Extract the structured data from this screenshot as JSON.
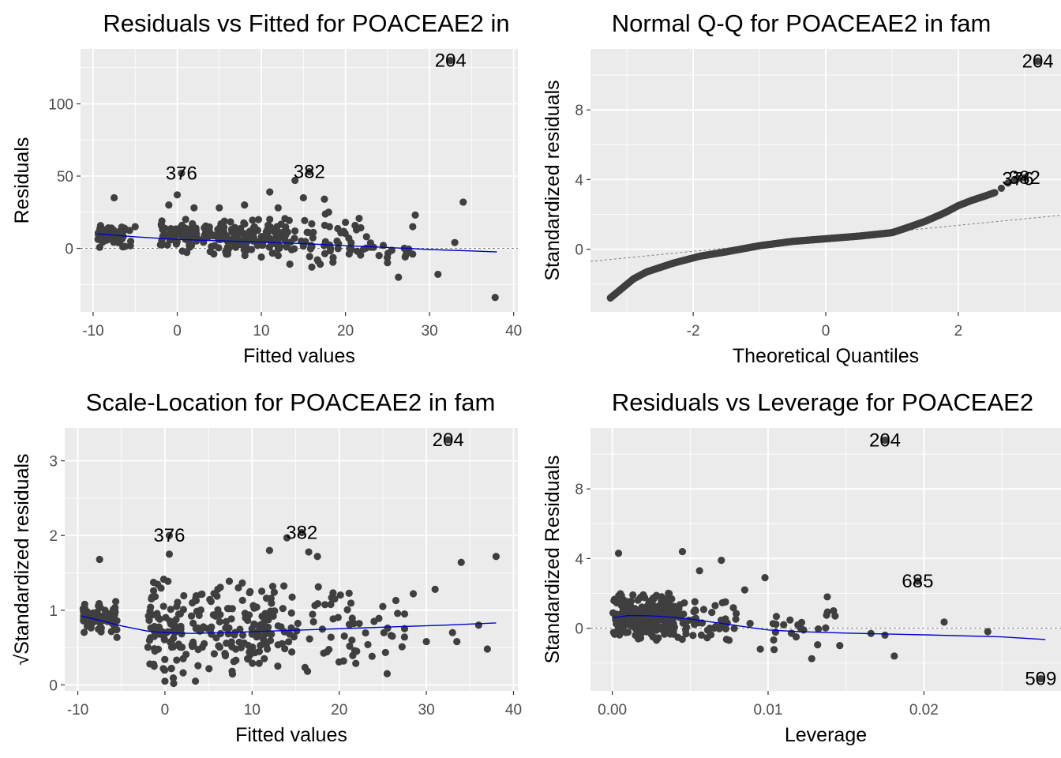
{
  "colors": {
    "panel_background": "#ebebeb",
    "grid": "#ffffff",
    "points": "#3f3f3f",
    "smooth_line": "#0000cc",
    "reference_line": "#7f7f7f",
    "tick_label": "#4d4d4d",
    "text": "#000000"
  },
  "chart_data": [
    {
      "id": "residuals-vs-fitted",
      "type": "scatter",
      "title": "Residuals vs Fitted for POACEAE2 in",
      "xlabel": "Fitted values",
      "ylabel": "Residuals",
      "xlim": [
        -11.5,
        40.5
      ],
      "ylim": [
        -44,
        138
      ],
      "xticks": [
        -10,
        0,
        10,
        20,
        30,
        40
      ],
      "xtick_labels": [
        "-10",
        "0",
        "10",
        "20",
        "30",
        "40"
      ],
      "yticks": [
        0,
        50,
        100
      ],
      "ytick_labels": [
        "0",
        "50",
        "100"
      ],
      "grid": true,
      "reference_line": {
        "type": "h",
        "value": 0
      },
      "smooth": {
        "x": [
          -9.5,
          -5,
          0,
          5,
          10,
          15,
          20,
          25,
          30,
          35,
          38
        ],
        "y": [
          10,
          8,
          6.2,
          5.2,
          4.3,
          3.3,
          1.8,
          0.6,
          -0.8,
          -1.8,
          -2.5
        ]
      },
      "cluster_seed": 11,
      "clusters": [
        {
          "n": 70,
          "x": [
            -9.5,
            -5.5
          ],
          "y": [
            -1,
            16
          ]
        },
        {
          "n": 70,
          "x": [
            -2,
            2.5
          ],
          "y": [
            -2,
            22
          ]
        },
        {
          "n": 140,
          "x": [
            3,
            13
          ],
          "y": [
            -6,
            24
          ]
        },
        {
          "n": 50,
          "x": [
            13,
            22
          ],
          "y": [
            -12,
            28
          ]
        },
        {
          "n": 12,
          "x": [
            22,
            28
          ],
          "y": [
            -8,
            8
          ]
        }
      ],
      "points": [
        [
          32.5,
          130
        ],
        [
          0.5,
          52
        ],
        [
          15.7,
          53
        ],
        [
          -7.5,
          35
        ],
        [
          0,
          37
        ],
        [
          11,
          39
        ],
        [
          14,
          47
        ],
        [
          15,
          35
        ],
        [
          17.5,
          34
        ],
        [
          28.3,
          23
        ],
        [
          34,
          32
        ],
        [
          33,
          4
        ],
        [
          31,
          -18
        ],
        [
          37.8,
          -34
        ],
        [
          26.3,
          -20
        ],
        [
          25,
          -10
        ],
        [
          24,
          -5
        ],
        [
          22.5,
          8
        ],
        [
          21.5,
          14
        ],
        [
          20,
          18
        ],
        [
          18,
          25
        ],
        [
          12,
          28
        ],
        [
          8,
          30
        ],
        [
          5,
          28
        ],
        [
          -1,
          30
        ],
        [
          -5,
          15
        ],
        [
          19,
          5
        ],
        [
          17,
          -11
        ],
        [
          16,
          -13
        ],
        [
          14,
          12
        ],
        [
          11,
          20
        ],
        [
          2,
          28
        ],
        [
          1,
          20
        ],
        [
          6,
          -4
        ],
        [
          10,
          -6
        ],
        [
          12,
          -5
        ],
        [
          28,
          15
        ],
        [
          27,
          0
        ],
        [
          24.5,
          2
        ],
        [
          20.5,
          0
        ]
      ],
      "point_labels": [
        {
          "text": "204",
          "x": 32.5,
          "y": 130
        },
        {
          "text": "376",
          "x": 0.5,
          "y": 52
        },
        {
          "text": "382",
          "x": 15.7,
          "y": 53
        }
      ]
    },
    {
      "id": "normal-qq",
      "type": "scatter",
      "title": "Normal Q-Q for POACEAE2 in fam",
      "xlabel": "Theoretical Quantiles",
      "ylabel": "Standardized residuals",
      "xlim": [
        -3.55,
        3.55
      ],
      "ylim": [
        -3.6,
        11.5
      ],
      "xticks": [
        -2,
        0,
        2
      ],
      "xtick_labels": [
        "-2",
        "0",
        "2"
      ],
      "yticks": [
        0,
        4,
        8
      ],
      "ytick_labels": [
        "0",
        "4",
        "8"
      ],
      "grid": true,
      "reference_line": {
        "type": "ab",
        "x": [
          -3.55,
          3.55
        ],
        "y": [
          -0.7,
          1.95
        ]
      },
      "qq_curve": {
        "n": 480,
        "x_range": [
          -3.25,
          2.55
        ],
        "qx": [
          -3.25,
          -2.9,
          -2.7,
          -2.3,
          -1.9,
          -1.5,
          -1.0,
          -0.5,
          0,
          0.5,
          1.0,
          1.2,
          1.5,
          1.8,
          2.0,
          2.2,
          2.4,
          2.55
        ],
        "qy": [
          -2.8,
          -1.7,
          -1.3,
          -0.8,
          -0.4,
          -0.15,
          0.2,
          0.45,
          0.6,
          0.75,
          0.95,
          1.2,
          1.6,
          2.1,
          2.5,
          2.8,
          3.05,
          3.25
        ]
      },
      "points": [
        [
          3.2,
          10.8
        ],
        [
          2.85,
          4.0
        ],
        [
          2.9,
          4.05
        ],
        [
          3.0,
          4.1
        ],
        [
          2.75,
          3.8
        ],
        [
          2.65,
          3.5
        ]
      ],
      "point_labels": [
        {
          "text": "204",
          "x": 3.2,
          "y": 10.8
        },
        {
          "text": "376",
          "x": 2.9,
          "y": 4.05
        },
        {
          "text": "382",
          "x": 3.0,
          "y": 4.1
        }
      ]
    },
    {
      "id": "scale-location",
      "type": "scatter",
      "title": "Scale-Location for POACEAE2 in fam",
      "xlabel": "Fitted values",
      "ylabel": "√Standardized residuals",
      "xlim": [
        -11.5,
        40.5
      ],
      "ylim": [
        -0.08,
        3.44
      ],
      "xticks": [
        -10,
        0,
        10,
        20,
        30,
        40
      ],
      "xtick_labels": [
        "-10",
        "0",
        "10",
        "20",
        "30",
        "40"
      ],
      "yticks": [
        0,
        1,
        2,
        3
      ],
      "ytick_labels": [
        "0",
        "1",
        "2",
        "3"
      ],
      "grid": true,
      "smooth": {
        "x": [
          -9.5,
          -7,
          -5,
          -2,
          0,
          3,
          7,
          12,
          17,
          22,
          27,
          32,
          38
        ],
        "y": [
          0.92,
          0.85,
          0.79,
          0.72,
          0.7,
          0.69,
          0.7,
          0.72,
          0.74,
          0.76,
          0.78,
          0.8,
          0.83
        ]
      },
      "cluster_seed": 23,
      "clusters": [
        {
          "n": 70,
          "x": [
            -9.5,
            -5.5
          ],
          "y": [
            0.68,
            1.2
          ]
        },
        {
          "n": 80,
          "x": [
            -2,
            2.5
          ],
          "y": [
            0.1,
            1.6
          ]
        },
        {
          "n": 140,
          "x": [
            3,
            13
          ],
          "y": [
            0.1,
            1.5
          ]
        },
        {
          "n": 50,
          "x": [
            13,
            22
          ],
          "y": [
            0.15,
            1.6
          ]
        },
        {
          "n": 14,
          "x": [
            22,
            28
          ],
          "y": [
            0.15,
            0.9
          ]
        }
      ],
      "points": [
        [
          32.5,
          3.28
        ],
        [
          0.5,
          2.0
        ],
        [
          15.7,
          2.04
        ],
        [
          0.5,
          1.75
        ],
        [
          14,
          1.97
        ],
        [
          12,
          1.8
        ],
        [
          16.5,
          1.78
        ],
        [
          17.5,
          1.72
        ],
        [
          -7.5,
          1.68
        ],
        [
          38,
          1.72
        ],
        [
          34,
          1.64
        ],
        [
          31,
          1.28
        ],
        [
          28.5,
          1.22
        ],
        [
          26.5,
          1.13
        ],
        [
          27.5,
          0.95
        ],
        [
          25,
          1.05
        ],
        [
          24,
          0.85
        ],
        [
          37,
          0.48
        ],
        [
          36,
          0.8
        ],
        [
          30,
          0.58
        ],
        [
          33,
          0.7
        ],
        [
          33.5,
          0.58
        ],
        [
          25.5,
          0.15
        ],
        [
          20.5,
          0.32
        ],
        [
          22,
          0.45
        ],
        [
          0,
          0.05
        ],
        [
          3.5,
          0.05
        ],
        [
          1,
          0.02
        ]
      ],
      "point_labels": [
        {
          "text": "204",
          "x": 32.5,
          "y": 3.28
        },
        {
          "text": "376",
          "x": 0.5,
          "y": 2.0
        },
        {
          "text": "382",
          "x": 15.7,
          "y": 2.04
        }
      ]
    },
    {
      "id": "residuals-vs-leverage",
      "type": "scatter",
      "title": "Residuals vs Leverage for POACEAE2",
      "xlabel": "Leverage",
      "ylabel": "Standardized Residuals",
      "xlim": [
        -0.0014,
        0.0288
      ],
      "ylim": [
        -3.6,
        11.5
      ],
      "xticks": [
        0.0,
        0.01,
        0.02
      ],
      "xtick_labels": [
        "0.00",
        "0.01",
        "0.02"
      ],
      "yticks": [
        0,
        4,
        8
      ],
      "ytick_labels": [
        "0",
        "4",
        "8"
      ],
      "grid": true,
      "reference_line": {
        "type": "h",
        "value": 0
      },
      "smooth": {
        "x": [
          0.0,
          0.001,
          0.002,
          0.003,
          0.004,
          0.005,
          0.006,
          0.007,
          0.008,
          0.009,
          0.01,
          0.012,
          0.015,
          0.02,
          0.025,
          0.0278
        ],
        "y": [
          0.6,
          0.72,
          0.72,
          0.68,
          0.62,
          0.52,
          0.4,
          0.28,
          0.15,
          0.02,
          -0.1,
          -0.2,
          -0.28,
          -0.38,
          -0.5,
          -0.65
        ]
      },
      "cluster_seed": 37,
      "clusters": [
        {
          "n": 240,
          "x": [
            0.0,
            0.004
          ],
          "y": [
            -0.8,
            2.2
          ]
        },
        {
          "n": 70,
          "x": [
            0.003,
            0.008
          ],
          "y": [
            -1.2,
            2.0
          ]
        },
        {
          "n": 18,
          "x": [
            0.008,
            0.014
          ],
          "y": [
            -1.3,
            1.5
          ]
        }
      ],
      "points": [
        [
          0.0175,
          10.8
        ],
        [
          0.0196,
          2.7
        ],
        [
          0.0275,
          -2.9
        ],
        [
          0.0004,
          4.3
        ],
        [
          0.0045,
          4.4
        ],
        [
          0.007,
          3.9
        ],
        [
          0.0056,
          3.3
        ],
        [
          0.0098,
          2.9
        ],
        [
          0.0085,
          2.2
        ],
        [
          0.0138,
          1.8
        ],
        [
          0.0142,
          1.0
        ],
        [
          0.0143,
          0.7
        ],
        [
          0.0166,
          -0.3
        ],
        [
          0.0175,
          -0.4
        ],
        [
          0.0181,
          -1.6
        ],
        [
          0.0146,
          -1.0
        ],
        [
          0.0213,
          0.35
        ],
        [
          0.0241,
          -0.2
        ],
        [
          0.0128,
          -1.75
        ],
        [
          0.0095,
          -1.2
        ],
        [
          0.0118,
          -0.5
        ],
        [
          0.011,
          0.2
        ]
      ],
      "point_labels": [
        {
          "text": "204",
          "x": 0.0175,
          "y": 10.8
        },
        {
          "text": "685",
          "x": 0.0196,
          "y": 2.7
        },
        {
          "text": "509",
          "x": 0.0275,
          "y": -2.9
        }
      ]
    }
  ]
}
